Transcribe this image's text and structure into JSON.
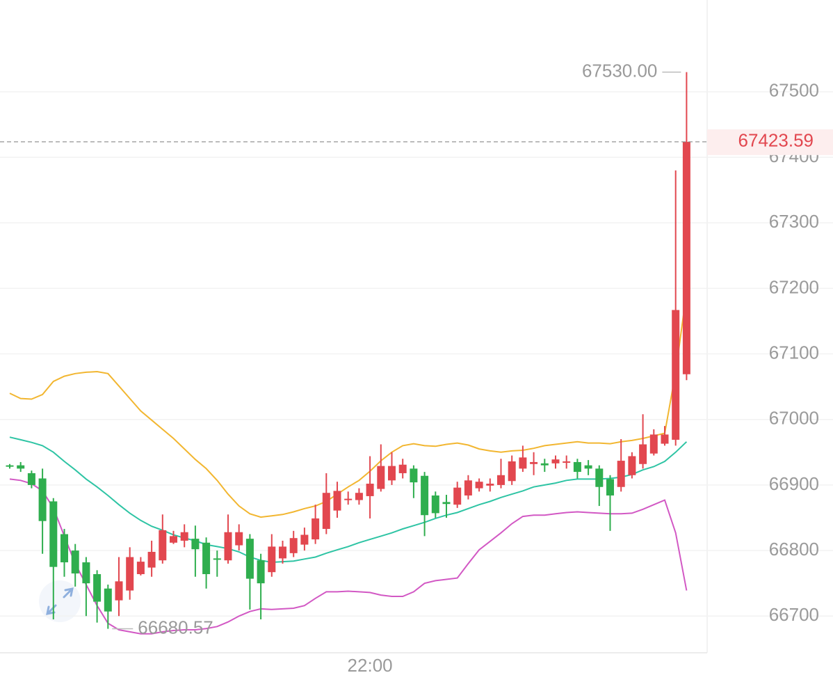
{
  "chart_data": {
    "type": "candlestick",
    "ylim": [
      66644,
      67640
    ],
    "yticks": [
      66700,
      66800,
      66900,
      67000,
      67100,
      67200,
      67300,
      67400,
      67500
    ],
    "grid": true,
    "up_color": "#e2474f",
    "down_color": "#2fae4e",
    "categories": [
      null,
      null,
      null,
      null,
      null,
      null,
      null,
      null,
      null,
      null,
      null,
      null,
      null,
      null,
      null,
      null,
      null,
      null,
      null,
      null,
      null,
      null,
      null,
      null,
      null,
      null,
      null,
      null,
      null,
      null,
      null,
      null,
      null,
      "22:00",
      null,
      null,
      null,
      null,
      null,
      null,
      null,
      null,
      null,
      null,
      null,
      null,
      null,
      null,
      null,
      null,
      null,
      null,
      null,
      null,
      null,
      null,
      null,
      null,
      null,
      null,
      null,
      null,
      null
    ],
    "open": [
      66930,
      66930,
      66918,
      66910,
      66875,
      66825,
      66800,
      66782,
      66764,
      66742,
      66724,
      66739,
      66764,
      66774,
      66785,
      66812,
      66815,
      66818,
      66812,
      66788,
      66785,
      66808,
      66818,
      66785,
      66767,
      66788,
      66796,
      66809,
      66817,
      66833,
      66861,
      66877,
      66877,
      66883,
      66894,
      66907,
      66918,
      66925,
      66914,
      66884,
      66874,
      66870,
      66884,
      66895,
      66899,
      66900,
      66906,
      66925,
      66932,
      66933,
      66933,
      66935,
      66935,
      66930,
      66925,
      66909,
      66897,
      66915,
      66932,
      66948,
      66963,
      66969,
      67069
    ],
    "high": [
      66932,
      66935,
      66922,
      66925,
      66880,
      66833,
      66810,
      66790,
      66770,
      66748,
      66790,
      66805,
      66790,
      66815,
      66855,
      66830,
      66840,
      66838,
      66820,
      66800,
      66855,
      66840,
      66825,
      66795,
      66825,
      66815,
      66830,
      66835,
      66870,
      66918,
      66905,
      66890,
      66895,
      66944,
      66962,
      66950,
      66940,
      66930,
      66920,
      66890,
      66885,
      66905,
      66915,
      66910,
      66910,
      66940,
      66945,
      66960,
      66950,
      66940,
      66945,
      66945,
      66940,
      66938,
      66930,
      66915,
      66970,
      66950,
      67008,
      66985,
      66990,
      67380,
      67530
    ],
    "low": [
      66925,
      66920,
      66895,
      66795,
      66695,
      66760,
      66745,
      66700,
      66690,
      66680.57,
      66700,
      66725,
      66762,
      66760,
      66780,
      66810,
      66805,
      66760,
      66742,
      66760,
      66780,
      66800,
      66710,
      66695,
      66760,
      66780,
      66790,
      66800,
      66810,
      66825,
      66850,
      66870,
      66870,
      66849,
      66890,
      66900,
      66910,
      66880,
      66822,
      66850,
      66850,
      66865,
      66878,
      66890,
      66890,
      66895,
      66900,
      66920,
      66915,
      66920,
      66925,
      66925,
      66910,
      66915,
      66868,
      66830,
      66890,
      66910,
      66925,
      66945,
      66960,
      66960,
      67060
    ],
    "close": [
      66928,
      66925,
      66900,
      66845,
      66775,
      66782,
      66765,
      66750,
      66722,
      66707,
      66753,
      66790,
      66783,
      66798,
      66831,
      66822,
      66828,
      66802,
      66764,
      66786,
      66828,
      66828,
      66757,
      66750,
      66806,
      66806,
      66819,
      66824,
      66849,
      66888,
      66891,
      66879,
      66888,
      66902,
      66929,
      66929,
      66931,
      66904,
      66854,
      66857,
      66871,
      66896,
      66907,
      66905,
      66902,
      66915,
      66936,
      66942,
      66935,
      66930,
      66939,
      66936,
      66920,
      66925,
      66897,
      66884,
      66937,
      66944,
      66962,
      66977,
      66977,
      67167,
      67423.59
    ],
    "lines": [
      {
        "color": "#f2b630",
        "values": [
          67040,
          67032,
          67031,
          67038,
          67058,
          67066,
          67070,
          67072,
          67073,
          67070,
          67051,
          67032,
          67013,
          66999,
          66985,
          66971,
          66955,
          66939,
          66925,
          66907,
          66886,
          66868,
          66856,
          66851,
          66853,
          66855,
          66859,
          66864,
          66868,
          66875,
          66886,
          66897,
          66907,
          66921,
          66937,
          66950,
          66960,
          66963,
          66960,
          66959,
          66962,
          66964,
          66961,
          66955,
          66952,
          66950,
          66952,
          66953,
          66956,
          66960,
          66962,
          66964,
          66966,
          66964,
          66964,
          66963,
          66966,
          66968,
          66971,
          66975,
          66979,
          67072,
          67194
        ]
      },
      {
        "color": "#2ec4a4",
        "values": [
          66973,
          66969,
          66965,
          66960,
          66950,
          66936,
          66923,
          66909,
          66897,
          66884,
          66870,
          66857,
          66846,
          66837,
          66831,
          66824,
          66819,
          66815,
          66809,
          66806,
          66803,
          66798,
          66790,
          66785,
          66782,
          66783,
          66784,
          66787,
          66790,
          66796,
          66801,
          66806,
          66812,
          66817,
          66822,
          66827,
          66833,
          66838,
          66843,
          66849,
          66854,
          66858,
          66864,
          66870,
          66875,
          66881,
          66886,
          66891,
          66897,
          66900,
          66903,
          66907,
          66909,
          66909,
          66909,
          66910,
          66912,
          66916,
          66923,
          66928,
          66936,
          66950,
          66966
        ]
      },
      {
        "color": "#d258c4",
        "values": [
          66909,
          66907,
          66902,
          66891,
          66865,
          66822,
          66780,
          66748,
          66716,
          66689,
          66679,
          66676,
          66673,
          66673,
          66676,
          66678,
          66679,
          66679,
          66681,
          66684,
          66691,
          66700,
          66707,
          66711,
          66710,
          66711,
          66712,
          66716,
          66727,
          66737,
          66737,
          66738,
          66737,
          66736,
          66732,
          66730,
          66730,
          66737,
          66750,
          66754,
          66756,
          66758,
          66780,
          66801,
          66814,
          66827,
          66841,
          66852,
          66854,
          66854,
          66856,
          66858,
          66859,
          66858,
          66857,
          66856,
          66856,
          66857,
          66863,
          66870,
          66877,
          66827,
          66739
        ]
      }
    ],
    "max_label": {
      "value": 67530,
      "label": "67530.00"
    },
    "min_label": {
      "value": 66680.57,
      "label": "66680.57"
    },
    "last_price": {
      "value": 67423.59,
      "label": "67423.59"
    }
  }
}
